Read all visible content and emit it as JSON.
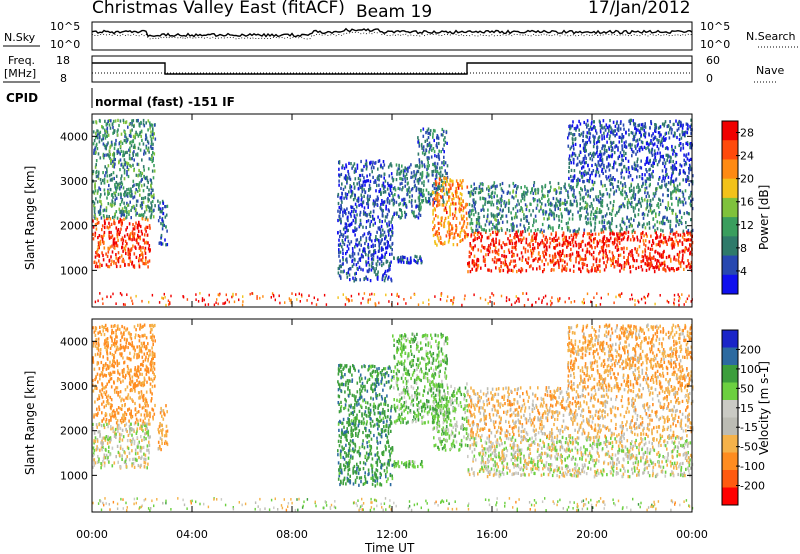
{
  "header": {
    "title": "Christmas Valley East (fitACF)",
    "beam": "Beam 19",
    "date": "17/Jan/2012"
  },
  "status": {
    "nsky_label": "N.Sky",
    "nsearch_label": "N.Search",
    "freq_label": "Freq.",
    "freq_unit": "[MHz]",
    "nave_label": "Nave",
    "cpid_label": "CPID",
    "cpid_text": "normal (fast) -151 IF",
    "noise_ticks_left": [
      "10^5",
      "10^0"
    ],
    "noise_ticks_right": [
      "10^5",
      "10^0"
    ],
    "freq_ticks": [
      "18",
      "8"
    ],
    "nave_ticks": [
      "60",
      "0"
    ]
  },
  "time_axis": {
    "label": "Time UT",
    "ticks": [
      "00:00",
      "04:00",
      "08:00",
      "12:00",
      "16:00",
      "20:00",
      "00:00"
    ]
  },
  "colors": {
    "power_scale": [
      "#1010ee",
      "#2848b0",
      "#2f7a6a",
      "#3a9e5e",
      "#7fc23c",
      "#f2c21a",
      "#ff8a12",
      "#ff4a0c",
      "#f00000"
    ],
    "velocity_scale": [
      "#ff0000",
      "#ff5a10",
      "#ff8c20",
      "#f5b24a",
      "#bcbcb4",
      "#cacac4",
      "#6cd040",
      "#3c9e3c",
      "#2c6aa0",
      "#1a24c8"
    ]
  },
  "chart_data": [
    {
      "type": "heatmap",
      "name": "power",
      "ylabel": "Slant Range [km]",
      "xlabel": "",
      "xlim": [
        0,
        24
      ],
      "ylim": [
        180,
        4500
      ],
      "y_ticks": [
        "1000",
        "2000",
        "3000",
        "4000"
      ],
      "colorbar": {
        "label": "Power [dB]",
        "range": [
          0,
          30
        ],
        "ticks": [
          "4",
          "8",
          "12",
          "16",
          "20",
          "24",
          "28"
        ]
      },
      "echo_regions": [
        {
          "t_start": 0.0,
          "t_end": 2.3,
          "range_low": 1100,
          "range_high": 2200,
          "power_db": 26
        },
        {
          "t_start": 0.0,
          "t_end": 2.5,
          "range_low": 2200,
          "range_high": 4400,
          "power_db": 10
        },
        {
          "t_start": 2.6,
          "t_end": 3.0,
          "range_low": 1600,
          "range_high": 2600,
          "power_db": 6
        },
        {
          "t_start": 9.8,
          "t_end": 12.0,
          "range_low": 800,
          "range_high": 3500,
          "power_db": 5
        },
        {
          "t_start": 12.0,
          "t_end": 13.2,
          "range_low": 2200,
          "range_high": 3400,
          "power_db": 8
        },
        {
          "t_start": 12.0,
          "t_end": 13.2,
          "range_low": 1200,
          "range_high": 1350,
          "power_db": 5
        },
        {
          "t_start": 13.0,
          "t_end": 14.2,
          "range_low": 2500,
          "range_high": 4200,
          "power_db": 8
        },
        {
          "t_start": 13.6,
          "t_end": 15.0,
          "range_low": 1600,
          "range_high": 3100,
          "power_db": 22
        },
        {
          "t_start": 15.0,
          "t_end": 24.0,
          "range_low": 1000,
          "range_high": 1900,
          "power_db": 27
        },
        {
          "t_start": 15.0,
          "t_end": 24.0,
          "range_low": 1900,
          "range_high": 3000,
          "power_db": 9
        },
        {
          "t_start": 19.0,
          "t_end": 24.0,
          "range_low": 3000,
          "range_high": 4400,
          "power_db": 5
        }
      ]
    },
    {
      "type": "heatmap",
      "name": "velocity",
      "ylabel": "Slant Range [km]",
      "xlabel": "Time UT",
      "xlim": [
        0,
        24
      ],
      "ylim": [
        180,
        4500
      ],
      "y_ticks": [
        "1000",
        "2000",
        "3000",
        "4000"
      ],
      "colorbar": {
        "label": "Velocity [m s-1]",
        "range": [
          -250,
          250
        ],
        "ticks": [
          "200",
          "100",
          "50",
          "15",
          "-15",
          "-50",
          "-100",
          "-200"
        ]
      },
      "echo_regions": [
        {
          "t_start": 0.0,
          "t_end": 2.3,
          "range_low": 1200,
          "range_high": 2200,
          "velocity": 0
        },
        {
          "t_start": 0.0,
          "t_end": 2.5,
          "range_low": 2200,
          "range_high": 4400,
          "velocity": -60
        },
        {
          "t_start": 2.6,
          "t_end": 3.0,
          "range_low": 1600,
          "range_high": 2600,
          "velocity": -40
        },
        {
          "t_start": 9.8,
          "t_end": 12.0,
          "range_low": 800,
          "range_high": 3500,
          "velocity": 80
        },
        {
          "t_start": 12.0,
          "t_end": 14.2,
          "range_low": 2200,
          "range_high": 4200,
          "velocity": 40
        },
        {
          "t_start": 12.0,
          "t_end": 13.2,
          "range_low": 1200,
          "range_high": 1350,
          "velocity": 40
        },
        {
          "t_start": 13.6,
          "t_end": 15.0,
          "range_low": 1600,
          "range_high": 3100,
          "velocity": 30
        },
        {
          "t_start": 15.0,
          "t_end": 24.0,
          "range_low": 1000,
          "range_high": 1900,
          "velocity": 0
        },
        {
          "t_start": 15.0,
          "t_end": 24.0,
          "range_low": 1900,
          "range_high": 3000,
          "velocity": -30
        },
        {
          "t_start": 19.0,
          "t_end": 24.0,
          "range_low": 3000,
          "range_high": 4400,
          "velocity": -40
        }
      ]
    }
  ]
}
